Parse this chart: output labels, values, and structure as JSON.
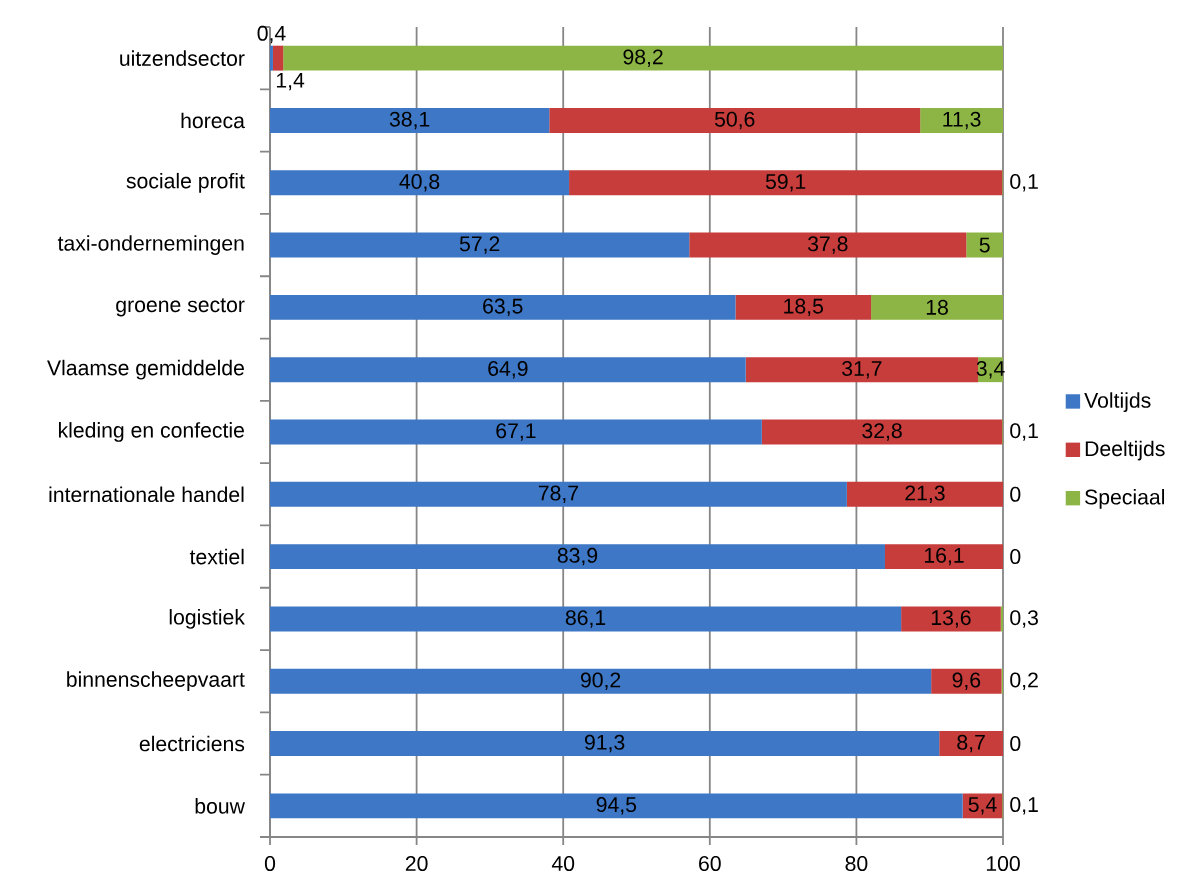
{
  "chart_data": {
    "type": "bar",
    "orientation": "horizontal",
    "stacked": true,
    "categories": [
      "uitzendsector",
      "horeca",
      "sociale profit",
      "taxi-ondernemingen",
      "groene sector",
      "Vlaamse gemiddelde",
      "kleding en confectie",
      "internationale handel",
      "textiel",
      "logistiek",
      "binnenscheepvaart",
      "electriciens",
      "bouw"
    ],
    "series": [
      {
        "name": "Voltijds",
        "color": "#3d77c5",
        "values": [
          0.4,
          38.1,
          40.8,
          57.2,
          63.5,
          64.9,
          67.1,
          78.7,
          83.9,
          86.1,
          90.2,
          91.3,
          94.5
        ],
        "value_labels": [
          "0,4",
          "38,1",
          "40,8",
          "57,2",
          "63,5",
          "64,9",
          "67,1",
          "78,7",
          "83,9",
          "86,1",
          "90,2",
          "91,3",
          "94,5"
        ]
      },
      {
        "name": "Deeltijds",
        "color": "#c63d3b",
        "values": [
          1.4,
          50.6,
          59.1,
          37.8,
          18.5,
          31.7,
          32.8,
          21.3,
          16.1,
          13.6,
          9.6,
          8.7,
          5.4
        ],
        "value_labels": [
          "1,4",
          "50,6",
          "59,1",
          "37,8",
          "18,5",
          "31,7",
          "32,8",
          "21,3",
          "16,1",
          "13,6",
          "9,6",
          "8,7",
          "5,4"
        ]
      },
      {
        "name": "Speciaal",
        "color": "#8db545",
        "values": [
          98.2,
          11.3,
          0.1,
          5,
          18,
          3.4,
          0.1,
          0,
          0,
          0.3,
          0.2,
          0,
          0.1
        ],
        "value_labels": [
          "98,2",
          "11,3",
          "0,1",
          "5",
          "18",
          "3,4",
          "0,1",
          "0",
          "0",
          "0,3",
          "0,2",
          "0",
          "0,1"
        ]
      }
    ],
    "xlim": [
      0,
      100
    ],
    "xticks": [
      0,
      20,
      40,
      60,
      80,
      100
    ],
    "grid": "x",
    "legend": "right"
  }
}
